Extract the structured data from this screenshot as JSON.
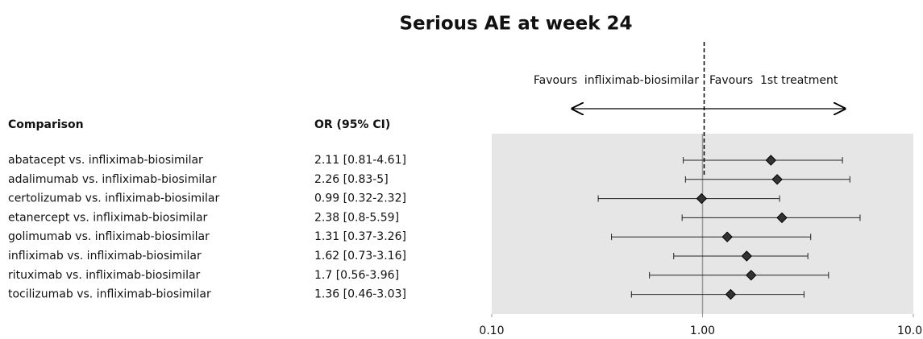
{
  "chart_data": {
    "type": "forest",
    "title": "Serious AE at week 24",
    "column_headers": [
      "Comparison",
      "OR (95% CI)"
    ],
    "annotations": [
      "Favours  infliximab-biosimilar",
      "Favours  1st treatment"
    ],
    "categories": [
      "abatacept vs. infliximab-biosimilar",
      "adalimumab vs. infliximab-biosimilar",
      "certolizumab vs. infliximab-biosimilar",
      "etanercept vs. infliximab-biosimilar",
      "golimumab vs. infliximab-biosimilar",
      "infliximab vs. infliximab-biosimilar",
      "rituximab vs. infliximab-biosimilar",
      "tocilizumab vs. infliximab-biosimilar"
    ],
    "values": [
      2.11,
      2.26,
      0.99,
      2.38,
      1.31,
      1.62,
      1.7,
      1.36
    ],
    "value_labels": [
      "2.11 [0.81-4.61]",
      "2.26 [0.83-5]",
      "0.99 [0.32-2.32]",
      "2.38 [0.8-5.59]",
      "1.31 [0.37-3.26]",
      "1.62 [0.73-3.16]",
      "1.7 [0.56-3.96]",
      "1.36 [0.46-3.03]"
    ],
    "lower": [
      0.81,
      0.83,
      0.32,
      0.8,
      0.37,
      0.73,
      0.56,
      0.46
    ],
    "upper": [
      4.61,
      5,
      2.32,
      5.59,
      3.26,
      3.16,
      3.96,
      3.03
    ],
    "xscale": "log",
    "xlim": [
      0.1,
      10
    ],
    "xticks": [
      {
        "value": 0.1,
        "label": "0.10"
      },
      {
        "value": 1,
        "label": "1.00"
      },
      {
        "value": 10,
        "label": "10.00"
      }
    ],
    "reference": 1,
    "color": "#222222",
    "background": "#e6e6e6"
  }
}
